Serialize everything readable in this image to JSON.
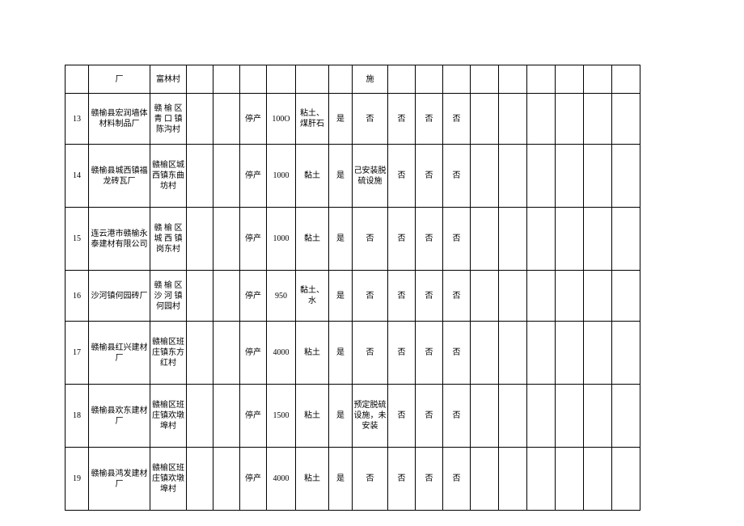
{
  "table": {
    "background_color": "#ffffff",
    "border_color": "#000000",
    "font_size": 10,
    "rows": [
      {
        "height_class": "r-top",
        "cells": [
          "",
          "厂",
          "富林村",
          "",
          "",
          "",
          "",
          "",
          "",
          "施",
          "",
          "",
          "",
          "",
          "",
          "",
          "",
          "",
          ""
        ]
      },
      {
        "height_class": "r-short",
        "cells": [
          "13",
          "赣榆县宏润墙体材料制品厂",
          "赣 榆 区青 口 镇陈沟村",
          "",
          "",
          "停产",
          "100O",
          "粘土、煤肝石",
          "是",
          "否",
          "否",
          "否",
          "否",
          "",
          "",
          "",
          "",
          "",
          ""
        ]
      },
      {
        "height_class": "r-reg",
        "cells": [
          "14",
          "赣榆县城西镇福龙砖瓦厂",
          "赣榆区城西镇东曲坊村",
          "",
          "",
          "停产",
          "1000",
          "黏土",
          "是",
          "己安装脱硫设施",
          "否",
          "否",
          "否",
          "",
          "",
          "",
          "",
          "",
          ""
        ]
      },
      {
        "height_class": "r-reg",
        "cells": [
          "15",
          "连云港市赣榆永泰建材有限公司",
          "赣 榆 区城 西 镇岗东村",
          "",
          "",
          "停产",
          "1000",
          "黏土",
          "是",
          "否",
          "否",
          "否",
          "否",
          "",
          "",
          "",
          "",
          "",
          ""
        ]
      },
      {
        "height_class": "r-short",
        "cells": [
          "16",
          "沙河镇何园砖厂",
          "赣 榆 区沙 河 镇何园村",
          "",
          "",
          "停产",
          "950",
          "黏土、水",
          "是",
          "否",
          "否",
          "否",
          "否",
          "",
          "",
          "",
          "",
          "",
          ""
        ]
      },
      {
        "height_class": "r-reg",
        "cells": [
          "17",
          "赣榆县红兴建材厂",
          "赣榆区班庄镇东方红村",
          "",
          "",
          "停产",
          "4000",
          "粘土",
          "是",
          "否",
          "否",
          "否",
          "否",
          "",
          "",
          "",
          "",
          "",
          ""
        ]
      },
      {
        "height_class": "r-reg",
        "cells": [
          "18",
          "赣榆县欢东建材厂",
          "赣榆区班庄镇欢墩埠村",
          "",
          "",
          "停产",
          "1500",
          "粘土",
          "是",
          "预定脱硫设施，未安装",
          "否",
          "否",
          "否",
          "",
          "",
          "",
          "",
          "",
          ""
        ]
      },
      {
        "height_class": "r-reg",
        "cells": [
          "19",
          "赣榆县鸿发建材厂",
          "赣榆区班庄镇欢墩埠村",
          "",
          "",
          "停产",
          "4000",
          "粘土",
          "是",
          "否",
          "否",
          "否",
          "否",
          "",
          "",
          "",
          "",
          "",
          ""
        ]
      }
    ],
    "col_classes": [
      "c0",
      "c1",
      "c2",
      "c3",
      "c4",
      "c5",
      "c6",
      "c7",
      "c8",
      "c9",
      "c10",
      "c11",
      "c12",
      "c13",
      "c14",
      "c15",
      "c16",
      "c17",
      "c18"
    ]
  }
}
